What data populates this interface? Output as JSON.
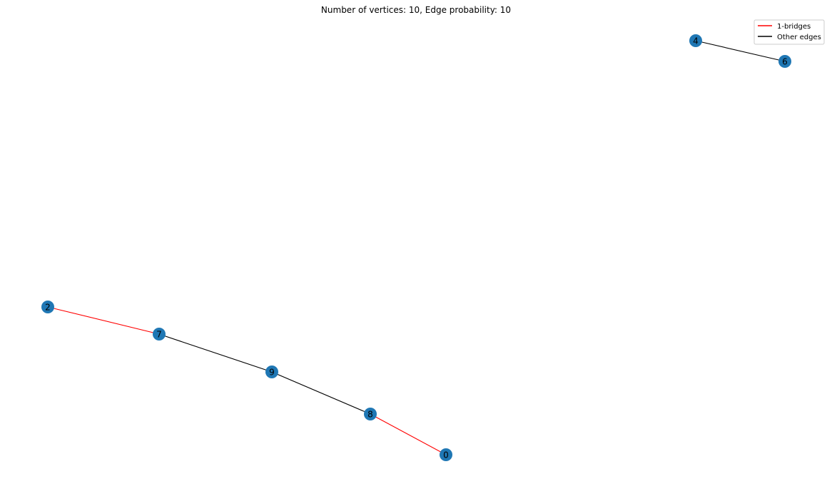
{
  "title": "Number of vertices: 10, Edge probability: 10",
  "legend": {
    "placement": "top-right",
    "entries": [
      {
        "label": "1-bridges",
        "color": "#ff0000"
      },
      {
        "label": "Other edges",
        "color": "#000000"
      }
    ]
  },
  "colors": {
    "node_fill": "#1f77b4",
    "bridge_edge": "#ff0000",
    "other_edge": "#000000"
  },
  "graph": {
    "nodes": [
      {
        "id": "2"
      },
      {
        "id": "7"
      },
      {
        "id": "9"
      },
      {
        "id": "8"
      },
      {
        "id": "0"
      },
      {
        "id": "4"
      },
      {
        "id": "6"
      }
    ],
    "edges": [
      {
        "source": "2",
        "target": "7",
        "type": "bridge"
      },
      {
        "source": "7",
        "target": "9",
        "type": "other"
      },
      {
        "source": "9",
        "target": "8",
        "type": "other"
      },
      {
        "source": "8",
        "target": "0",
        "type": "bridge"
      },
      {
        "source": "4",
        "target": "6",
        "type": "other"
      }
    ]
  }
}
